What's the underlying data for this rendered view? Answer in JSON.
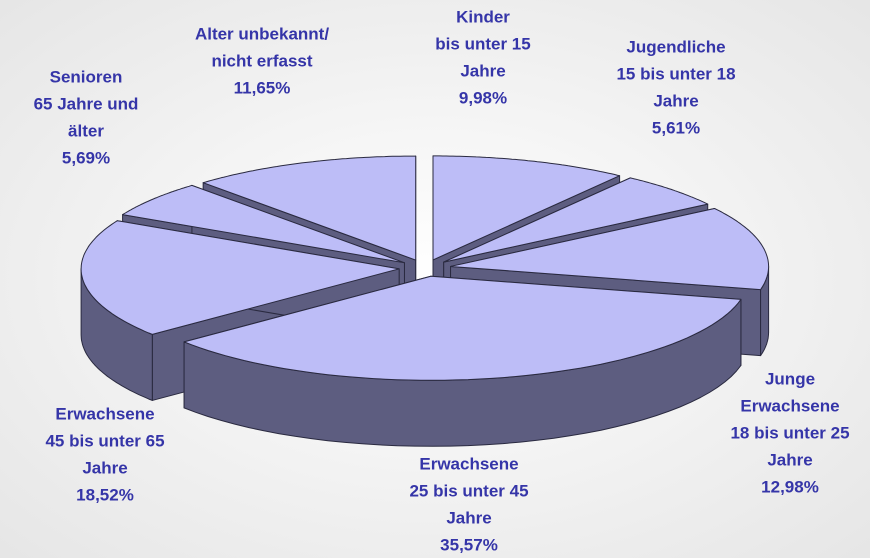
{
  "chart_data": {
    "type": "pie3d",
    "categories": [
      [
        "Kinder",
        "bis unter 15",
        "Jahre"
      ],
      [
        "Jugendliche",
        "15 bis unter 18",
        "Jahre"
      ],
      [
        "Junge",
        "Erwachsene",
        "18 bis unter 25",
        "Jahre"
      ],
      [
        "Erwachsene",
        "25 bis unter 45",
        "Jahre"
      ],
      [
        "Erwachsene",
        "45 bis unter 65",
        "Jahre"
      ],
      [
        "Senioren",
        "65 Jahre und",
        "älter"
      ],
      [
        "Alter unbekannt/",
        "nicht erfasst"
      ]
    ],
    "values": [
      9.98,
      5.61,
      12.98,
      35.57,
      18.52,
      5.69,
      11.65
    ],
    "value_labels": [
      "9,98%",
      "5,61%",
      "12,98%",
      "35,57%",
      "18,52%",
      "5,69%",
      "11,65%"
    ],
    "color": "#bdbdf7",
    "side_color": "#5d5d80",
    "label_color": "#3535a8"
  }
}
